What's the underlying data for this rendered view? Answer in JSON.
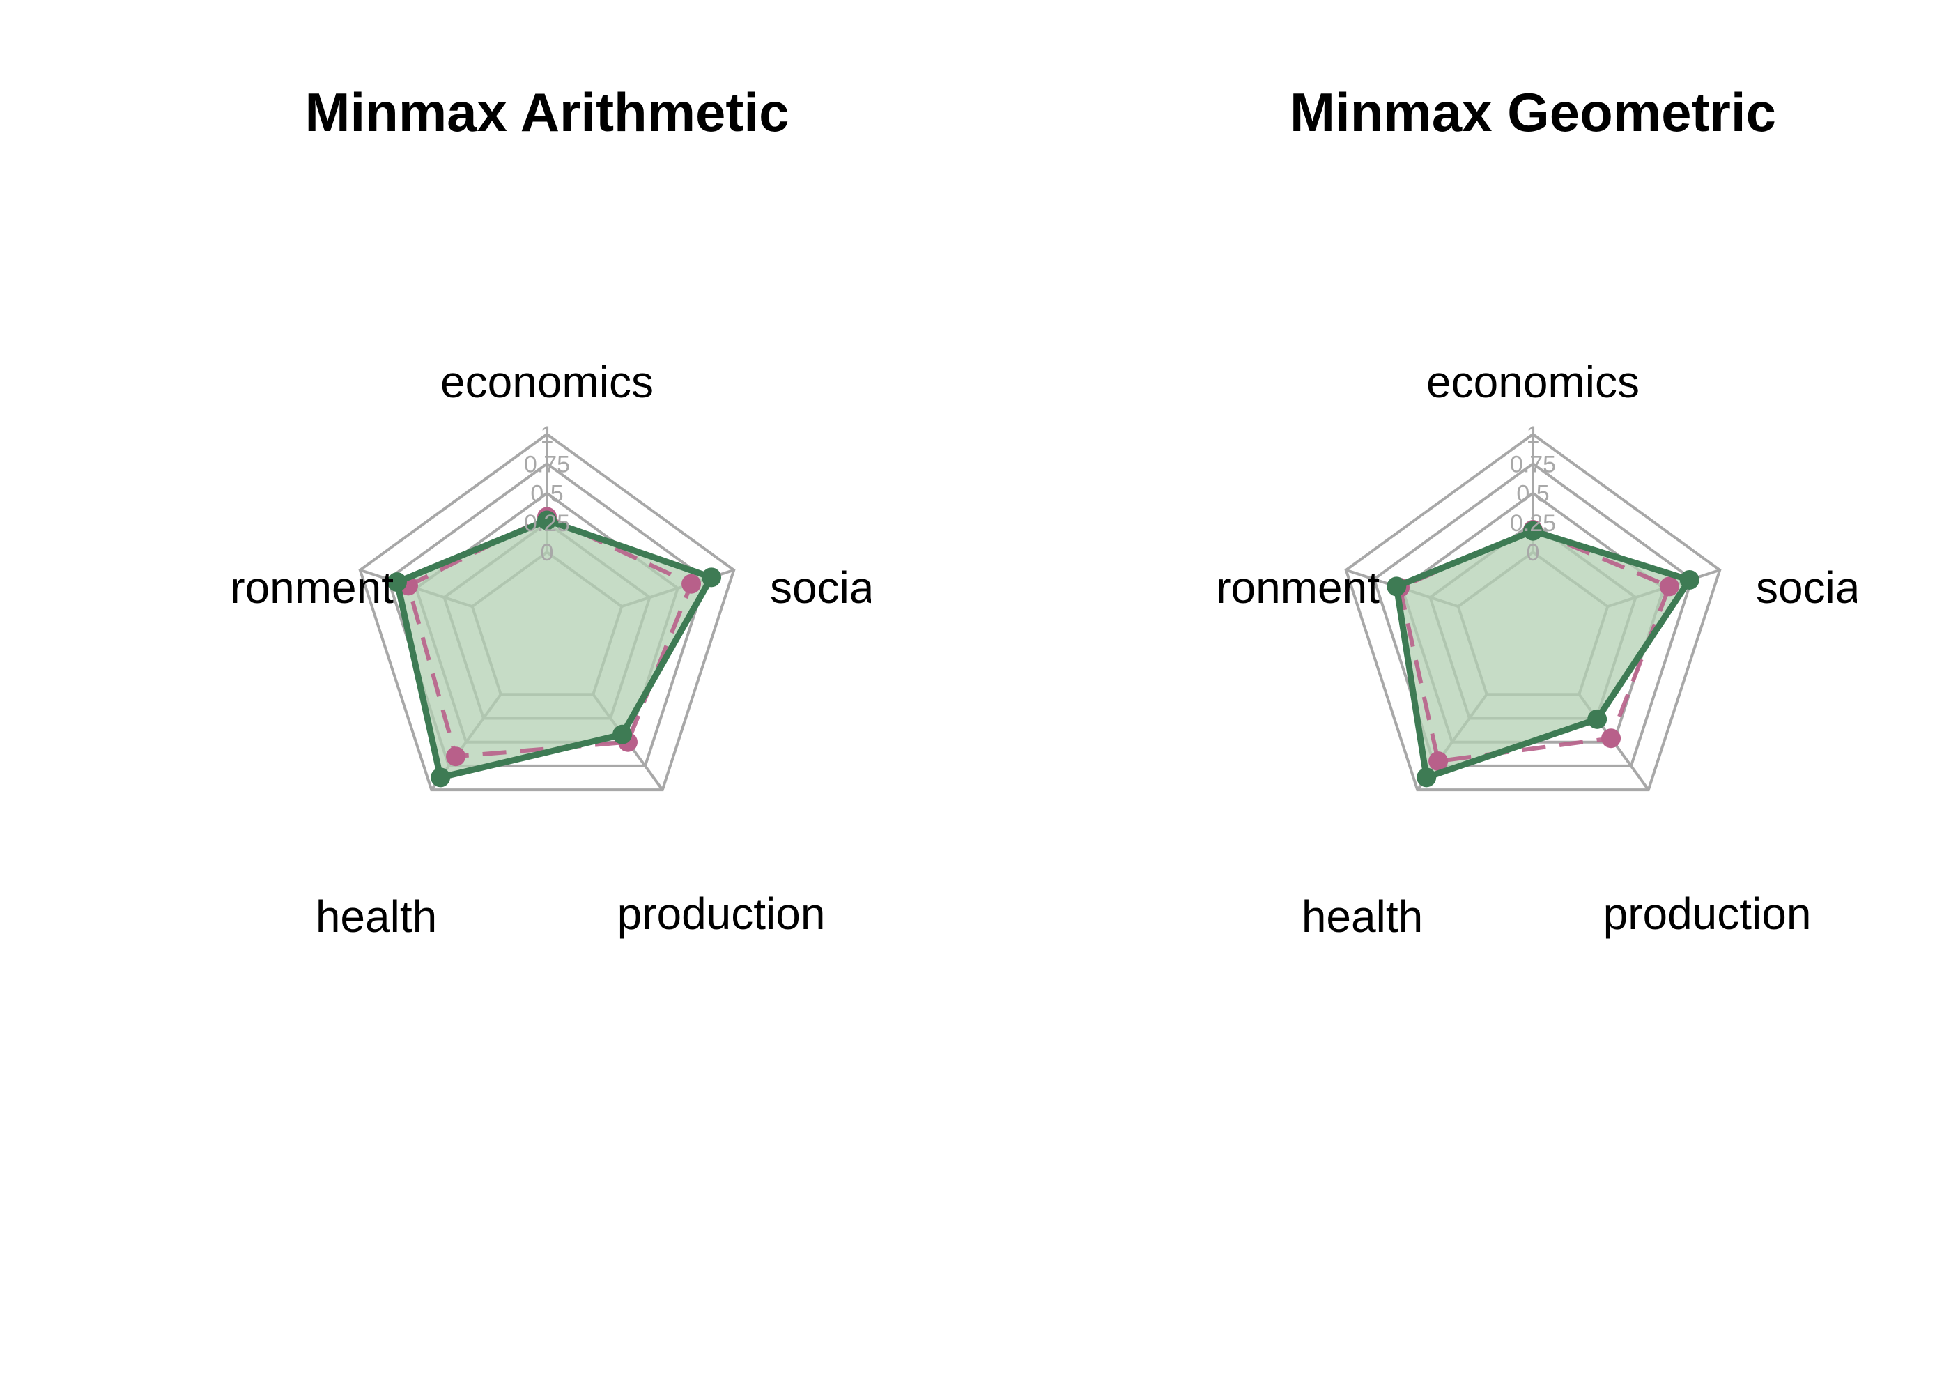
{
  "chart_data": [
    {
      "type": "radar",
      "title": "Minmax Arithmetic",
      "axes": [
        "economics",
        "social",
        "production",
        "health",
        "environment"
      ],
      "visible_axis_labels": [
        "economics",
        "socia",
        "production",
        "health",
        "ronment"
      ],
      "ticks": [
        "0",
        "0.25",
        "0.5",
        "0.75",
        "1"
      ],
      "range": [
        0,
        1
      ],
      "grid": true,
      "series": [
        {
          "values": [
            0.3,
            0.62,
            0.5,
            0.65,
            0.57
          ],
          "color": "#b8608a",
          "line_style": "dashed",
          "fill": false
        },
        {
          "values": [
            0.27,
            0.8,
            0.42,
            0.87,
            0.67
          ],
          "color": "#3e7b54",
          "line_style": "solid",
          "fill": true,
          "fill_color": "#b3d0b3"
        }
      ]
    },
    {
      "type": "radar",
      "title": "Minmax Geometric",
      "axes": [
        "economics",
        "social",
        "production",
        "health",
        "environment"
      ],
      "visible_axis_labels": [
        "economics",
        "socia",
        "production",
        "health",
        "ronment"
      ],
      "ticks": [
        "0",
        "0.25",
        "0.5",
        "0.75",
        "1"
      ],
      "range": [
        0,
        1
      ],
      "grid": true,
      "series": [
        {
          "values": [
            0.19,
            0.55,
            0.46,
            0.7,
            0.52
          ],
          "color": "#b8608a",
          "line_style": "dashed",
          "fill": false
        },
        {
          "values": [
            0.18,
            0.73,
            0.26,
            0.87,
            0.55
          ],
          "color": "#3e7b54",
          "line_style": "solid",
          "fill": true,
          "fill_color": "#b3d0b3"
        }
      ]
    }
  ]
}
